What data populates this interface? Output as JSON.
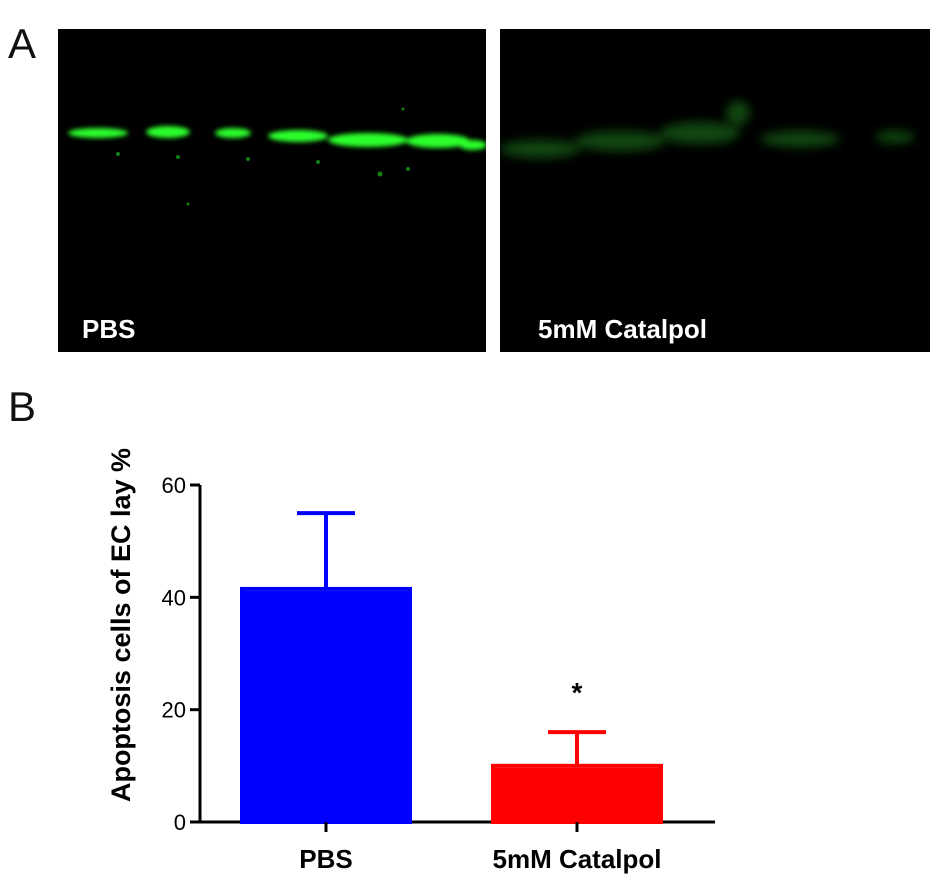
{
  "figure": {
    "panel_a_letter": "A",
    "panel_b_letter": "B",
    "images": [
      {
        "label": "PBS",
        "fluorescence_color": "#22ff22",
        "signal": "strong"
      },
      {
        "label": "5mM Catalpol",
        "fluorescence_color": "#1a7a1a",
        "signal": "weak"
      }
    ]
  },
  "chart_data": {
    "type": "bar",
    "categories": [
      "PBS",
      "5mM Catalpol"
    ],
    "values": [
      41.5,
      10
    ],
    "errors": [
      13.5,
      6
    ],
    "significance": [
      "",
      "*"
    ],
    "colors": [
      "#0000ff",
      "#ff0000"
    ],
    "ylabel": "Apoptosis cells of EC lay %",
    "xlabel": "",
    "ylim": [
      0,
      60
    ],
    "yticks": [
      0,
      20,
      40,
      60
    ],
    "grid": false,
    "legend": "none"
  }
}
